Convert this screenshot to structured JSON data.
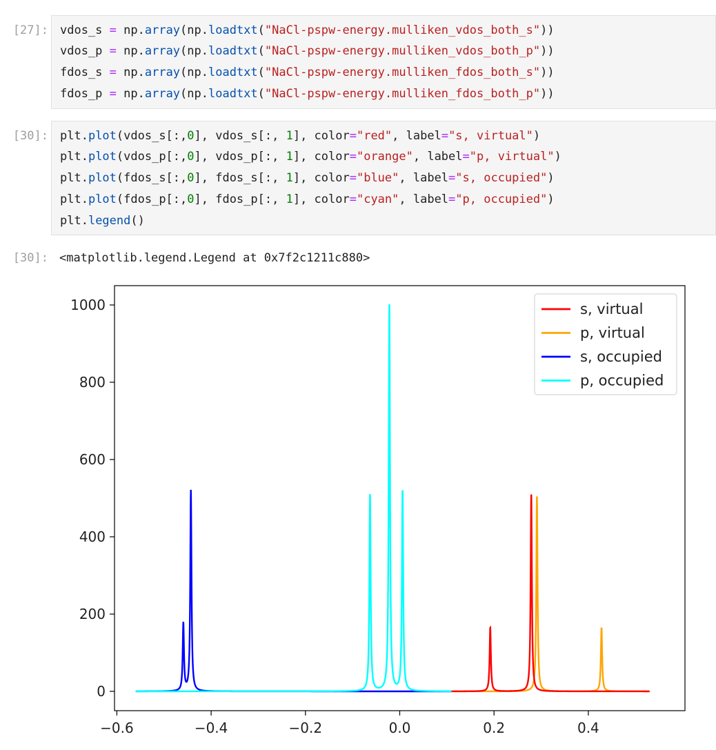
{
  "cells": [
    {
      "prompt": "[27]:",
      "lines": [
        [
          [
            "vdos_s ",
            "v"
          ],
          [
            "=",
            "o"
          ],
          [
            " np.",
            "v"
          ],
          [
            "array",
            "a"
          ],
          [
            "(np.",
            "v"
          ],
          [
            "loadtxt",
            "a"
          ],
          [
            "(",
            "v"
          ],
          [
            "\"NaCl-pspw-energy.mulliken_vdos_both_s\"",
            "s"
          ],
          [
            "))",
            "v"
          ]
        ],
        [
          [
            "vdos_p ",
            "v"
          ],
          [
            "=",
            "o"
          ],
          [
            " np.",
            "v"
          ],
          [
            "array",
            "a"
          ],
          [
            "(np.",
            "v"
          ],
          [
            "loadtxt",
            "a"
          ],
          [
            "(",
            "v"
          ],
          [
            "\"NaCl-pspw-energy.mulliken_vdos_both_p\"",
            "s"
          ],
          [
            "))",
            "v"
          ]
        ],
        [
          [
            "fdos_s ",
            "v"
          ],
          [
            "=",
            "o"
          ],
          [
            " np.",
            "v"
          ],
          [
            "array",
            "a"
          ],
          [
            "(np.",
            "v"
          ],
          [
            "loadtxt",
            "a"
          ],
          [
            "(",
            "v"
          ],
          [
            "\"NaCl-pspw-energy.mulliken_fdos_both_s\"",
            "s"
          ],
          [
            "))",
            "v"
          ]
        ],
        [
          [
            "fdos_p ",
            "v"
          ],
          [
            "=",
            "o"
          ],
          [
            " np.",
            "v"
          ],
          [
            "array",
            "a"
          ],
          [
            "(np.",
            "v"
          ],
          [
            "loadtxt",
            "a"
          ],
          [
            "(",
            "v"
          ],
          [
            "\"NaCl-pspw-energy.mulliken_fdos_both_p\"",
            "s"
          ],
          [
            "))",
            "v"
          ]
        ]
      ]
    },
    {
      "prompt": "[30]:",
      "lines": [
        [
          [
            "plt.",
            "v"
          ],
          [
            "plot",
            "a"
          ],
          [
            "(vdos_s[:,",
            "v"
          ],
          [
            "0",
            "n"
          ],
          [
            "], vdos_s[:, ",
            "v"
          ],
          [
            "1",
            "n"
          ],
          [
            "], color",
            "v"
          ],
          [
            "=",
            "o"
          ],
          [
            "\"red\"",
            "s"
          ],
          [
            ", label",
            "v"
          ],
          [
            "=",
            "o"
          ],
          [
            "\"s, virtual\"",
            "s"
          ],
          [
            ")",
            "v"
          ]
        ],
        [
          [
            "plt.",
            "v"
          ],
          [
            "plot",
            "a"
          ],
          [
            "(vdos_p[:,",
            "v"
          ],
          [
            "0",
            "n"
          ],
          [
            "], vdos_p[:, ",
            "v"
          ],
          [
            "1",
            "n"
          ],
          [
            "], color",
            "v"
          ],
          [
            "=",
            "o"
          ],
          [
            "\"orange\"",
            "s"
          ],
          [
            ", label",
            "v"
          ],
          [
            "=",
            "o"
          ],
          [
            "\"p, virtual\"",
            "s"
          ],
          [
            ")",
            "v"
          ]
        ],
        [
          [
            "plt.",
            "v"
          ],
          [
            "plot",
            "a"
          ],
          [
            "(fdos_s[:,",
            "v"
          ],
          [
            "0",
            "n"
          ],
          [
            "], fdos_s[:, ",
            "v"
          ],
          [
            "1",
            "n"
          ],
          [
            "], color",
            "v"
          ],
          [
            "=",
            "o"
          ],
          [
            "\"blue\"",
            "s"
          ],
          [
            ", label",
            "v"
          ],
          [
            "=",
            "o"
          ],
          [
            "\"s, occupied\"",
            "s"
          ],
          [
            ")",
            "v"
          ]
        ],
        [
          [
            "plt.",
            "v"
          ],
          [
            "plot",
            "a"
          ],
          [
            "(fdos_p[:,",
            "v"
          ],
          [
            "0",
            "n"
          ],
          [
            "], fdos_p[:, ",
            "v"
          ],
          [
            "1",
            "n"
          ],
          [
            "], color",
            "v"
          ],
          [
            "=",
            "o"
          ],
          [
            "\"cyan\"",
            "s"
          ],
          [
            ", label",
            "v"
          ],
          [
            "=",
            "o"
          ],
          [
            "\"p, occupied\"",
            "s"
          ],
          [
            ")",
            "v"
          ]
        ],
        [
          [
            "plt.",
            "v"
          ],
          [
            "legend",
            "a"
          ],
          [
            "()",
            "v"
          ]
        ]
      ]
    }
  ],
  "output": {
    "prompt": "[30]:",
    "text": "<matplotlib.legend.Legend at 0x7f2c1211c880>"
  },
  "chart_data": {
    "type": "line",
    "xlim": [
      -0.605,
      0.605
    ],
    "ylim": [
      -50,
      1050
    ],
    "xticks": [
      -0.6,
      -0.4,
      -0.2,
      0.0,
      0.2,
      0.4
    ],
    "xtick_labels": [
      "−0.6",
      "−0.4",
      "−0.2",
      "0.0",
      "0.2",
      "0.4"
    ],
    "yticks": [
      0,
      200,
      400,
      600,
      800,
      1000
    ],
    "ytick_labels": [
      "0",
      "200",
      "400",
      "600",
      "800",
      "1000"
    ],
    "legend_position": "top-right",
    "grid": false,
    "series": [
      {
        "name": "s, virtual",
        "color": "#ff0000",
        "x_range": [
          0.11,
          0.53
        ],
        "peaks": [
          {
            "x": 0.192,
            "y": 165
          },
          {
            "x": 0.279,
            "y": 510
          }
        ]
      },
      {
        "name": "p, virtual",
        "color": "#ffa500",
        "x_range": [
          0.11,
          0.53
        ],
        "peaks": [
          {
            "x": 0.291,
            "y": 505
          },
          {
            "x": 0.428,
            "y": 165
          }
        ]
      },
      {
        "name": "s, occupied",
        "color": "#0000ff",
        "x_range": [
          -0.56,
          0.11
        ],
        "peaks": [
          {
            "x": -0.459,
            "y": 175
          },
          {
            "x": -0.443,
            "y": 520
          }
        ]
      },
      {
        "name": "p, occupied",
        "color": "#00ffff",
        "x_range": [
          -0.56,
          0.11
        ],
        "peaks": [
          {
            "x": -0.063,
            "y": 510
          },
          {
            "x": -0.022,
            "y": 1000
          },
          {
            "x": 0.006,
            "y": 520
          }
        ]
      }
    ]
  }
}
